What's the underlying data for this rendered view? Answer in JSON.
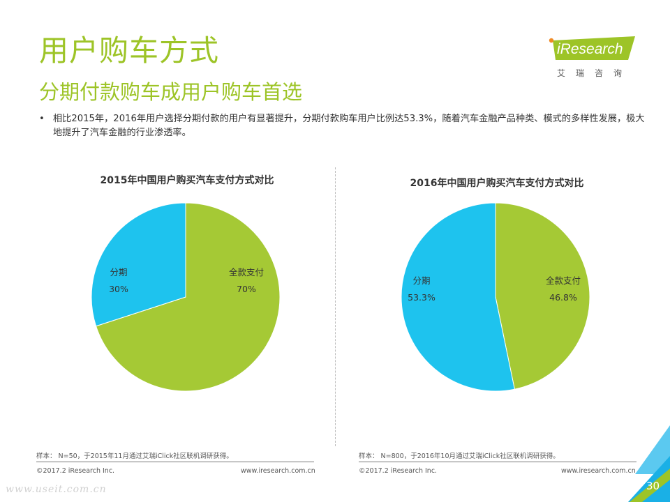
{
  "header": {
    "title": "用户购车方式",
    "subtitle": "分期付款购车成用户购车首选"
  },
  "logo": {
    "text": "iResearch",
    "sub": "艾瑞咨询"
  },
  "bullet": {
    "marker": "•",
    "text": "相比2015年，2016年用户选择分期付款的用户有显著提升，分期付款购车用户比例达53.3%，随着汽车金融产品种类、模式的多样性发展，极大地提升了汽车金融的行业渗透率。"
  },
  "chart_data": [
    {
      "type": "pie",
      "title": "2015年中国用户购买汽车支付方式对比",
      "slices": [
        {
          "label": "全款支付",
          "value": 70,
          "value_label": "70%",
          "color": "#a5c935"
        },
        {
          "label": "分期",
          "value": 30,
          "value_label": "30%",
          "color": "#1ec3ee"
        }
      ],
      "note": "样本： N=50，于2015年11月通过艾瑞iClick社区联机调研获得。"
    },
    {
      "type": "pie",
      "title": "2016年中国用户购买汽车支付方式对比",
      "slices": [
        {
          "label": "全款支付",
          "value": 46.8,
          "value_label": "46.8%",
          "color": "#a5c935"
        },
        {
          "label": "分期",
          "value": 53.3,
          "value_label": "53.3%",
          "color": "#1ec3ee"
        }
      ],
      "note": "样本： N=800，于2016年10月通过艾瑞iClick社区联机调研获得。"
    }
  ],
  "footer": {
    "copyright": "©2017.2 iResearch Inc.",
    "website": "www.iresearch.com.cn",
    "page_number": "30",
    "watermark": "www.useit.com.cn"
  },
  "colors": {
    "accent_green": "#9dc427",
    "pie_green": "#a5c935",
    "pie_blue": "#1ec3ee"
  }
}
